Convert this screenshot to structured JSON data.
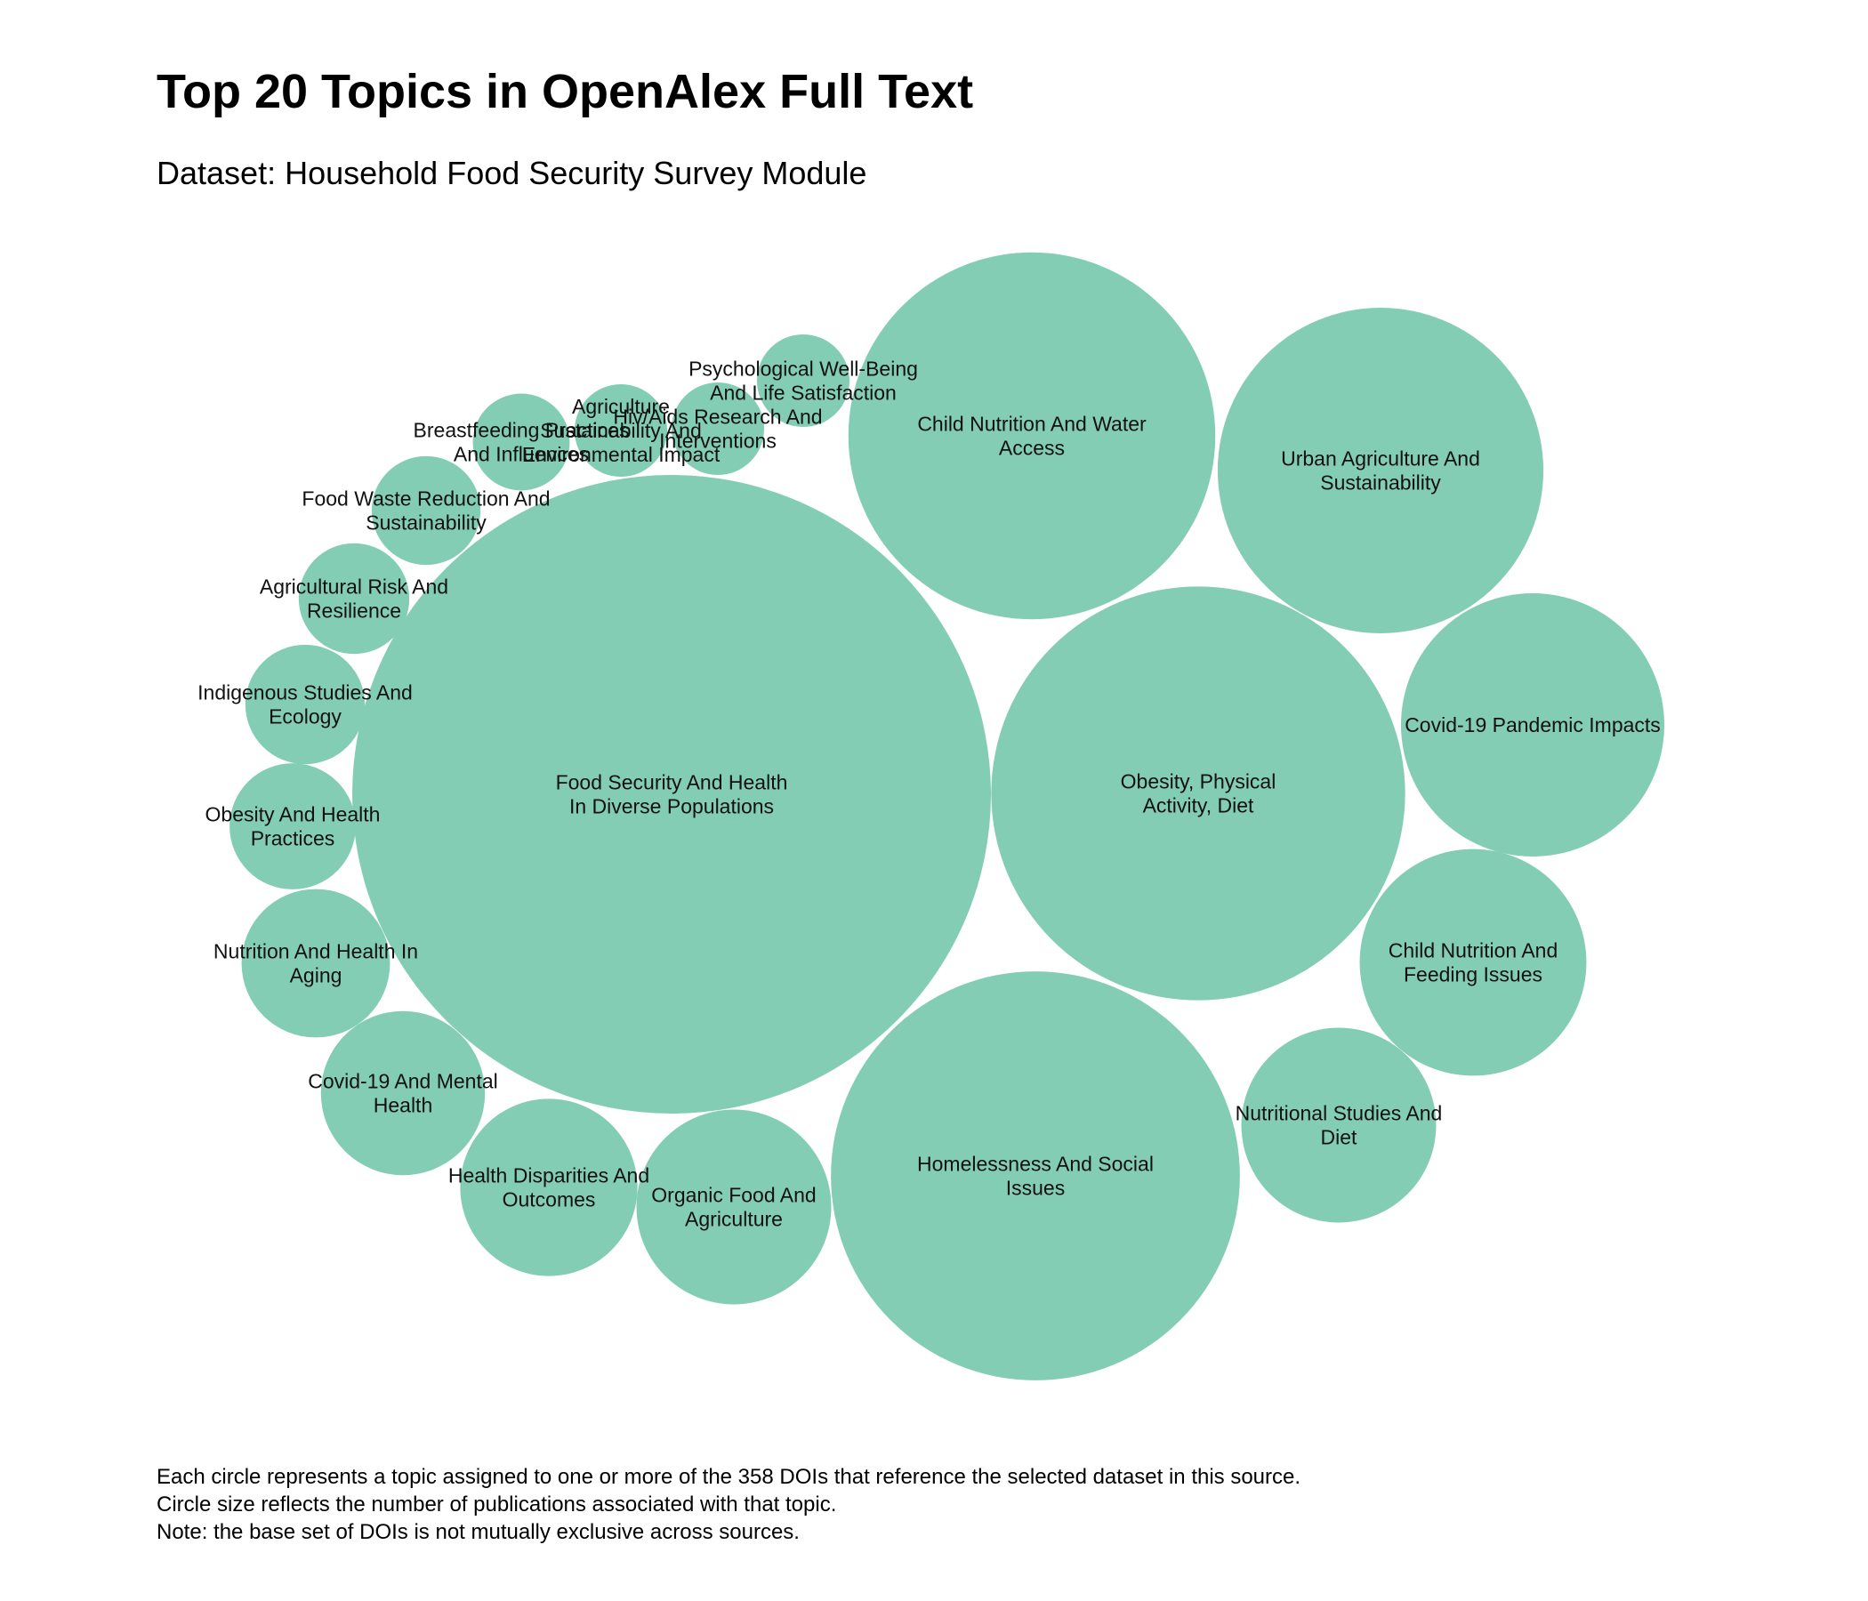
{
  "title": "Top 20 Topics in OpenAlex Full Text",
  "subtitle": "Dataset: Household Food Security Survey Module",
  "notes": [
    "Each circle represents a topic assigned to one or more of the 358 DOIs that reference the selected dataset in this source.",
    "Circle size reflects the number of publications associated with that topic.",
    "Note: the base set of DOIs is not mutually exclusive across sources."
  ],
  "colors": {
    "bubble": "#84cdb5",
    "text": "#111111"
  },
  "chart_data": {
    "type": "packed-bubble",
    "series": [
      {
        "label": [
          "Food Security And Health",
          "In Diverse Populations"
        ],
        "value": 100
      },
      {
        "label": [
          "Obesity, Physical",
          "Activity, Diet"
        ],
        "value": 42
      },
      {
        "label": [
          "Homelessness And Social",
          "Issues"
        ],
        "value": 41
      },
      {
        "label": [
          "Child Nutrition And Water",
          "Access"
        ],
        "value": 33
      },
      {
        "label": [
          "Urban Agriculture And",
          "Sustainability"
        ],
        "value": 26
      },
      {
        "label": [
          "Covid-19 Pandemic Impacts"
        ],
        "value": 17
      },
      {
        "label": [
          "Child Nutrition And",
          "Feeding Issues"
        ],
        "value": 12.6
      },
      {
        "label": [
          "Nutritional Studies And",
          "Diet"
        ],
        "value": 9.3
      },
      {
        "label": [
          "Organic Food And",
          "Agriculture"
        ],
        "value": 9.3
      },
      {
        "label": [
          "Health Disparities And",
          "Outcomes"
        ],
        "value": 7.7
      },
      {
        "label": [
          "Covid-19 And Mental",
          "Health"
        ],
        "value": 6.6
      },
      {
        "label": [
          "Nutrition And Health In",
          "Aging"
        ],
        "value": 5.4
      },
      {
        "label": [
          "Obesity And Health",
          "Practices"
        ],
        "value": 3.9
      },
      {
        "label": [
          "Indigenous Studies And",
          "Ecology"
        ],
        "value": 3.5
      },
      {
        "label": [
          "Agricultural Risk And",
          "Resilience"
        ],
        "value": 3
      },
      {
        "label": [
          "Food Waste Reduction And",
          "Sustainability"
        ],
        "value": 2.9
      },
      {
        "label": [
          "Breastfeeding Practices",
          "And Influences"
        ],
        "value": 2.3
      },
      {
        "label": [
          "Agriculture",
          "Sustainability And",
          "Environmental Impact"
        ],
        "value": 2.1
      },
      {
        "label": [
          "Hiv/Aids Research And",
          "Interventions"
        ],
        "value": 2.1
      },
      {
        "label": [
          "Psychological Well-Being",
          "And Life Satisfaction"
        ],
        "value": 2.1
      }
    ]
  }
}
